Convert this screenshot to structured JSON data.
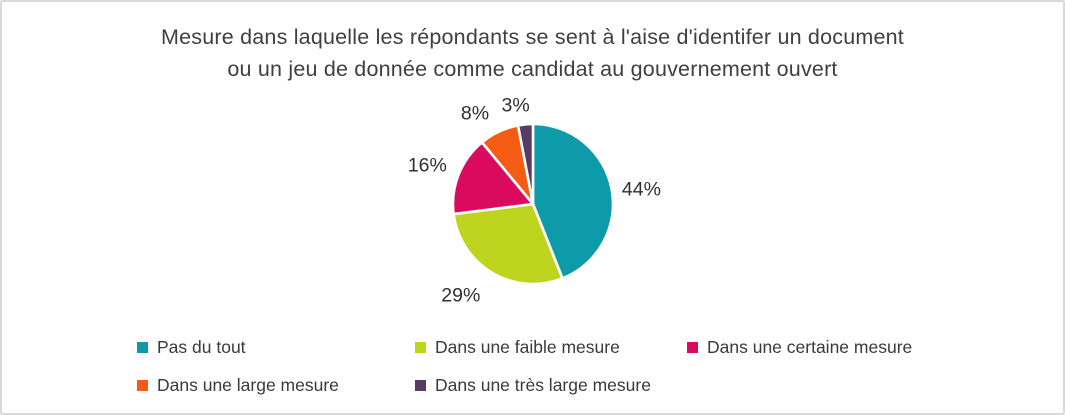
{
  "frame": {
    "background": "#ffffff",
    "border_color": "#d9d9d9"
  },
  "chart_data": {
    "type": "pie",
    "title": "Mesure dans laquelle les répondants se sent à l'aise d'identifer un document ou un jeu de donnée comme candidat au gouvernement ouvert",
    "title_lines": {
      "0": "Mesure dans laquelle les répondants se sent à l'aise d'identifer un document",
      "1": "ou un jeu de donnée comme candidat au gouvernement ouvert"
    },
    "series": [
      {
        "name": "Pas du tout",
        "value": 44,
        "label": "44%",
        "color": "#0d9ba9"
      },
      {
        "name": "Dans une faible mesure",
        "value": 29,
        "label": "29%",
        "color": "#bfd41e"
      },
      {
        "name": "Dans une certaine mesure",
        "value": 16,
        "label": "16%",
        "color": "#da0a5e"
      },
      {
        "name": "Dans une large mesure",
        "value": 8,
        "label": "8%",
        "color": "#f55c13"
      },
      {
        "name": "Dans une très large mesure",
        "value": 3,
        "label": "3%",
        "color": "#593a64"
      }
    ],
    "start_angle_deg": 0,
    "direction": "clockwise",
    "legend_position": "bottom",
    "data_label_color": "#303030",
    "title_color": "#3f3f3f"
  }
}
